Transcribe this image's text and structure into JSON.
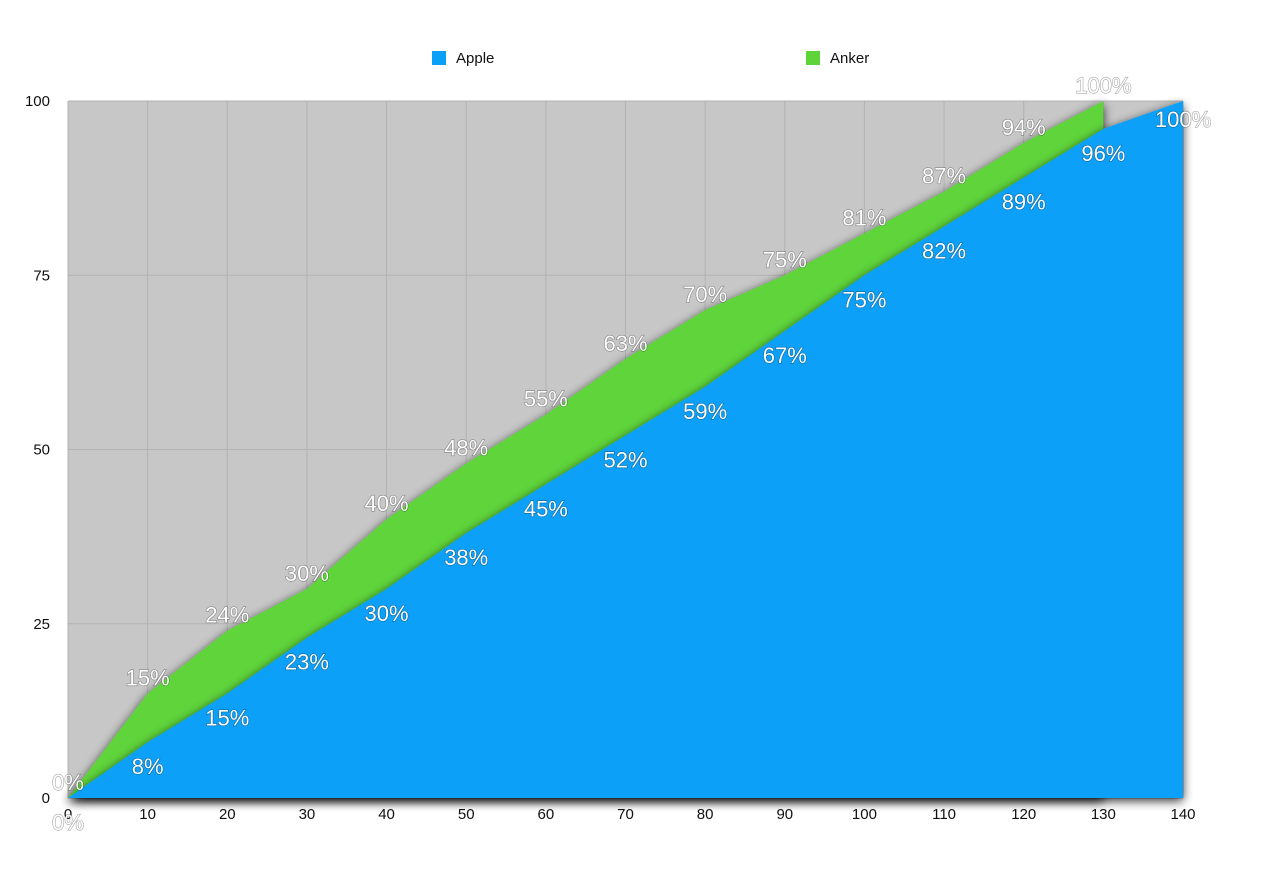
{
  "chart_data": {
    "type": "area",
    "x": [
      0,
      10,
      20,
      30,
      40,
      50,
      60,
      70,
      80,
      90,
      100,
      110,
      120,
      130,
      140
    ],
    "series": [
      {
        "name": "Apple",
        "color": "#0AA0F8",
        "x": [
          0,
          10,
          20,
          30,
          40,
          50,
          60,
          70,
          80,
          90,
          100,
          110,
          120,
          130,
          140
        ],
        "values": [
          0,
          8,
          15,
          23,
          30,
          38,
          45,
          52,
          59,
          67,
          75,
          82,
          89,
          96,
          100
        ],
        "labels": [
          "0%",
          "8%",
          "15%",
          "23%",
          "30%",
          "38%",
          "45%",
          "52%",
          "59%",
          "67%",
          "75%",
          "82%",
          "89%",
          "96%",
          "100%"
        ]
      },
      {
        "name": "Anker",
        "color": "#5ED43A",
        "x": [
          0,
          10,
          20,
          30,
          40,
          50,
          60,
          70,
          80,
          90,
          100,
          110,
          120,
          130
        ],
        "values": [
          0,
          15,
          24,
          30,
          40,
          48,
          55,
          63,
          70,
          75,
          81,
          87,
          94,
          100
        ],
        "labels": [
          "0%",
          "15%",
          "24%",
          "30%",
          "40%",
          "48%",
          "55%",
          "63%",
          "70%",
          "75%",
          "81%",
          "87%",
          "94%",
          "100%"
        ]
      }
    ],
    "x_ticks": [
      "0",
      "10",
      "20",
      "30",
      "40",
      "50",
      "60",
      "70",
      "80",
      "90",
      "100",
      "110",
      "120",
      "130",
      "140"
    ],
    "y_ticks": [
      "0",
      "25",
      "50",
      "75",
      "100"
    ],
    "xlim": [
      0,
      140
    ],
    "ylim": [
      0,
      100
    ],
    "grid": true,
    "legend_position": "top",
    "background_color": "#C6C7C6"
  }
}
